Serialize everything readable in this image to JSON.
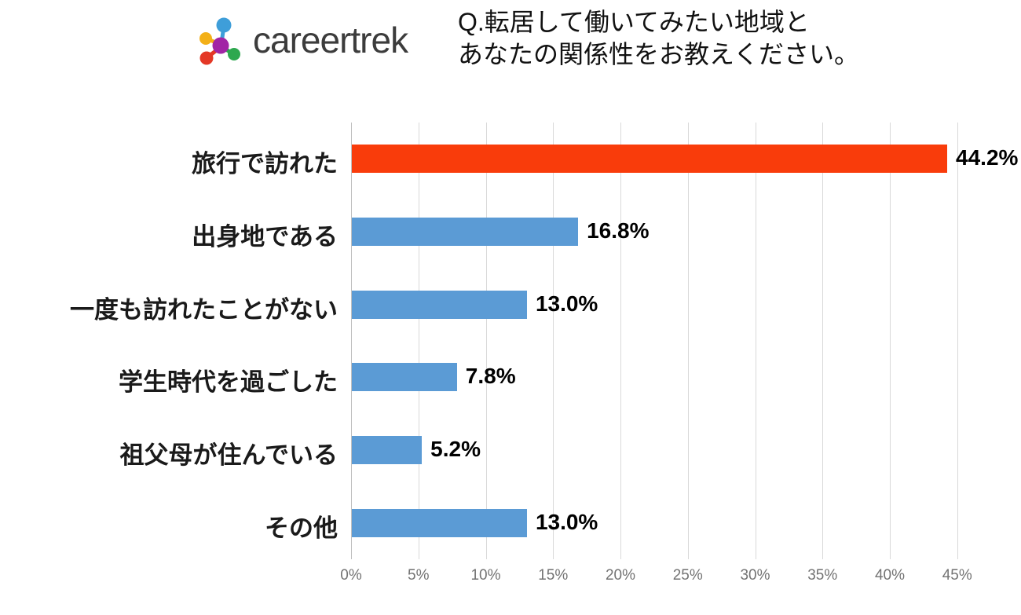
{
  "header": {
    "brand": "careertrek",
    "logo_icon": {
      "name": "molecule-logo-icon",
      "colors": {
        "top_node": "#3e9ed9",
        "center_node": "#a125a5",
        "left_node": "#f3b018",
        "bottom_left_node": "#e43826",
        "bottom_right_node": "#2ea84f"
      }
    },
    "title_line1": "Q.転居して働いてみたい地域と",
    "title_line2": "あなたの関係性をお教えください。"
  },
  "chart_data": {
    "type": "bar",
    "orientation": "horizontal",
    "title": "Q.転居して働いてみたい地域とあなたの関係性をお教えください。",
    "categories": [
      "旅行で訪れた",
      "出身地である",
      "一度も訪れたことがない",
      "学生時代を過ごした",
      "祖父母が住んでいる",
      "その他"
    ],
    "values": [
      44.2,
      16.8,
      13.0,
      7.8,
      5.2,
      13.0
    ],
    "value_labels": [
      "44.2%",
      "16.8%",
      "13.0%",
      "7.8%",
      "5.2%",
      "13.0%"
    ],
    "bar_colors": [
      "#f93c0b",
      "#5b9bd5",
      "#5b9bd5",
      "#5b9bd5",
      "#5b9bd5",
      "#5b9bd5"
    ],
    "highlight_color": "#f93c0b",
    "default_color": "#5b9bd5",
    "xlabel": "",
    "ylabel": "",
    "xlim": [
      0,
      45
    ],
    "x_ticks": [
      "0%",
      "5%",
      "10%",
      "15%",
      "20%",
      "25%",
      "30%",
      "35%",
      "40%",
      "45%"
    ],
    "x_tick_values": [
      0,
      5,
      10,
      15,
      20,
      25,
      30,
      35,
      40,
      45
    ],
    "grid": true,
    "gridline_color": "#d9d9d9",
    "legend": false
  }
}
